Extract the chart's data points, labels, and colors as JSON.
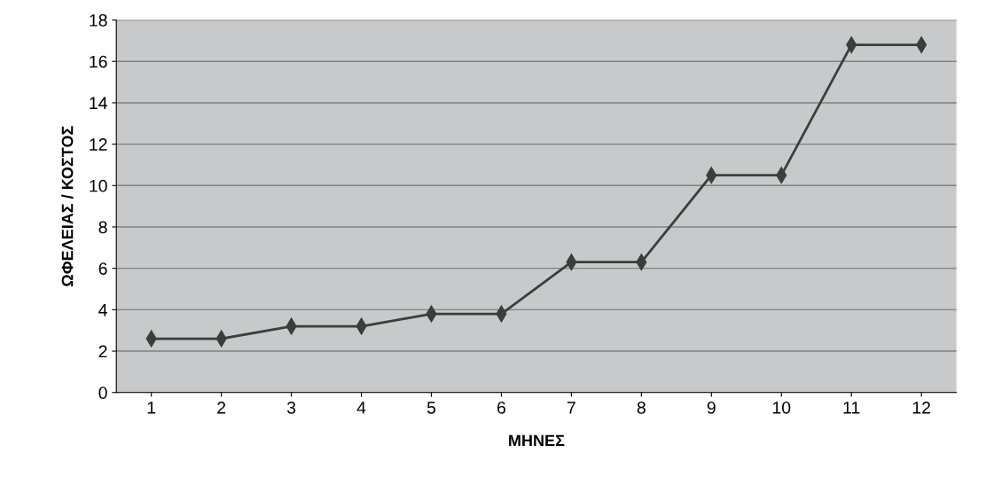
{
  "chart_data": {
    "type": "line",
    "xlabel": "ΜΗΝΕΣ",
    "ylabel": "ΩΦΕΛΕΙΑΣ / ΚΟΣΤΟΣ",
    "categories": [
      "1",
      "2",
      "3",
      "4",
      "5",
      "6",
      "7",
      "8",
      "9",
      "10",
      "11",
      "12"
    ],
    "series": [
      {
        "color": "#3a3f3c",
        "values": [
          2.6,
          2.6,
          3.2,
          3.2,
          3.8,
          3.8,
          6.3,
          6.3,
          10.5,
          10.5,
          16.8,
          16.8
        ]
      }
    ],
    "ylim": [
      0,
      18
    ],
    "yticks": [
      0,
      2,
      4,
      6,
      8,
      10,
      12,
      14,
      16,
      18
    ],
    "grid": "y",
    "marker": "diamond"
  }
}
